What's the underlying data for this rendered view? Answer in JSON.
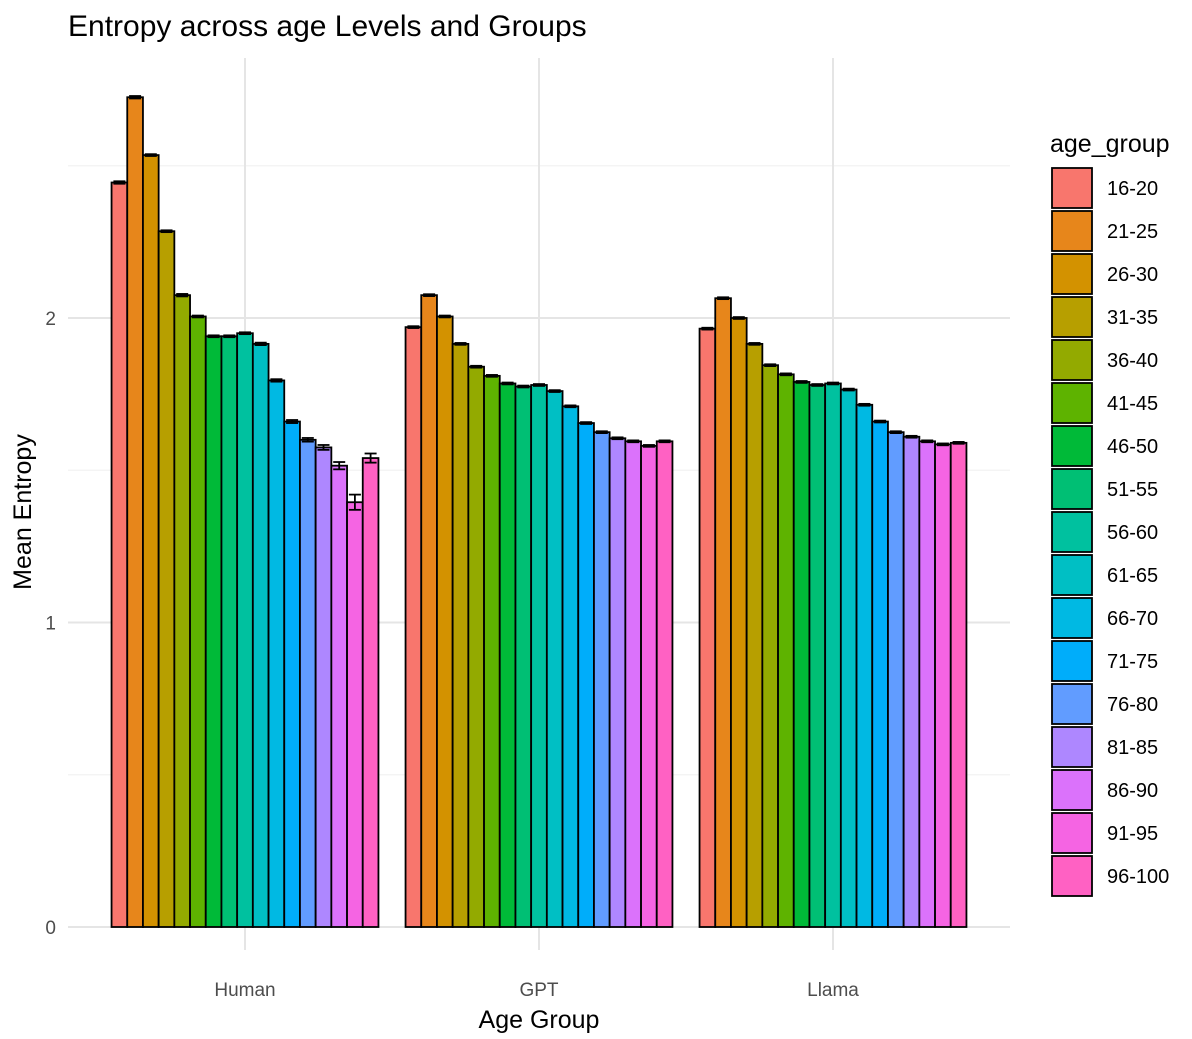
{
  "chart_data": {
    "type": "bar",
    "title": "Entropy across age Levels and Groups",
    "xlabel": "Age Group",
    "ylabel": "Mean Entropy",
    "ylim": [
      0,
      2.9
    ],
    "y_ticks": [
      0,
      1,
      2
    ],
    "grid": true,
    "legend": {
      "title": "age_group",
      "position": "right"
    },
    "categories": [
      "Human",
      "GPT",
      "Llama"
    ],
    "series": [
      {
        "name": "16-20",
        "color": "#F8766D",
        "values": [
          2.445,
          1.97,
          1.965
        ],
        "errors": [
          0.004,
          0.003,
          0.003
        ]
      },
      {
        "name": "21-25",
        "color": "#E7861B",
        "values": [
          2.725,
          2.075,
          2.065
        ],
        "errors": [
          0.004,
          0.003,
          0.003
        ]
      },
      {
        "name": "26-30",
        "color": "#D39200",
        "values": [
          2.535,
          2.005,
          2.0
        ],
        "errors": [
          0.003,
          0.003,
          0.003
        ]
      },
      {
        "name": "31-35",
        "color": "#B79F00",
        "values": [
          2.285,
          1.915,
          1.915
        ],
        "errors": [
          0.003,
          0.003,
          0.003
        ]
      },
      {
        "name": "36-40",
        "color": "#93AA00",
        "values": [
          2.075,
          1.84,
          1.845
        ],
        "errors": [
          0.004,
          0.003,
          0.003
        ]
      },
      {
        "name": "41-45",
        "color": "#5EB300",
        "values": [
          2.005,
          1.81,
          1.815
        ],
        "errors": [
          0.003,
          0.003,
          0.003
        ]
      },
      {
        "name": "46-50",
        "color": "#00BA38",
        "values": [
          1.94,
          1.785,
          1.79
        ],
        "errors": [
          0.003,
          0.003,
          0.003
        ]
      },
      {
        "name": "51-55",
        "color": "#00BF74",
        "values": [
          1.94,
          1.775,
          1.78
        ],
        "errors": [
          0.003,
          0.003,
          0.003
        ]
      },
      {
        "name": "56-60",
        "color": "#00C19F",
        "values": [
          1.95,
          1.78,
          1.785
        ],
        "errors": [
          0.003,
          0.003,
          0.003
        ]
      },
      {
        "name": "61-65",
        "color": "#00BFC4",
        "values": [
          1.915,
          1.76,
          1.765
        ],
        "errors": [
          0.004,
          0.003,
          0.003
        ]
      },
      {
        "name": "66-70",
        "color": "#00B9E3",
        "values": [
          1.795,
          1.71,
          1.715
        ],
        "errors": [
          0.004,
          0.003,
          0.003
        ]
      },
      {
        "name": "71-75",
        "color": "#00ADFA",
        "values": [
          1.66,
          1.655,
          1.66
        ],
        "errors": [
          0.005,
          0.003,
          0.003
        ]
      },
      {
        "name": "76-80",
        "color": "#619CFF",
        "values": [
          1.6,
          1.625,
          1.625
        ],
        "errors": [
          0.006,
          0.003,
          0.003
        ]
      },
      {
        "name": "81-85",
        "color": "#AE87FF",
        "values": [
          1.575,
          1.605,
          1.61
        ],
        "errors": [
          0.008,
          0.003,
          0.003
        ]
      },
      {
        "name": "86-90",
        "color": "#DB72FB",
        "values": [
          1.515,
          1.595,
          1.595
        ],
        "errors": [
          0.012,
          0.003,
          0.003
        ]
      },
      {
        "name": "91-95",
        "color": "#F564E3",
        "values": [
          1.395,
          1.58,
          1.585
        ],
        "errors": [
          0.025,
          0.003,
          0.003
        ]
      },
      {
        "name": "96-100",
        "color": "#FF61C3",
        "values": [
          1.54,
          1.595,
          1.59
        ],
        "errors": [
          0.015,
          0.003,
          0.003
        ]
      }
    ]
  }
}
